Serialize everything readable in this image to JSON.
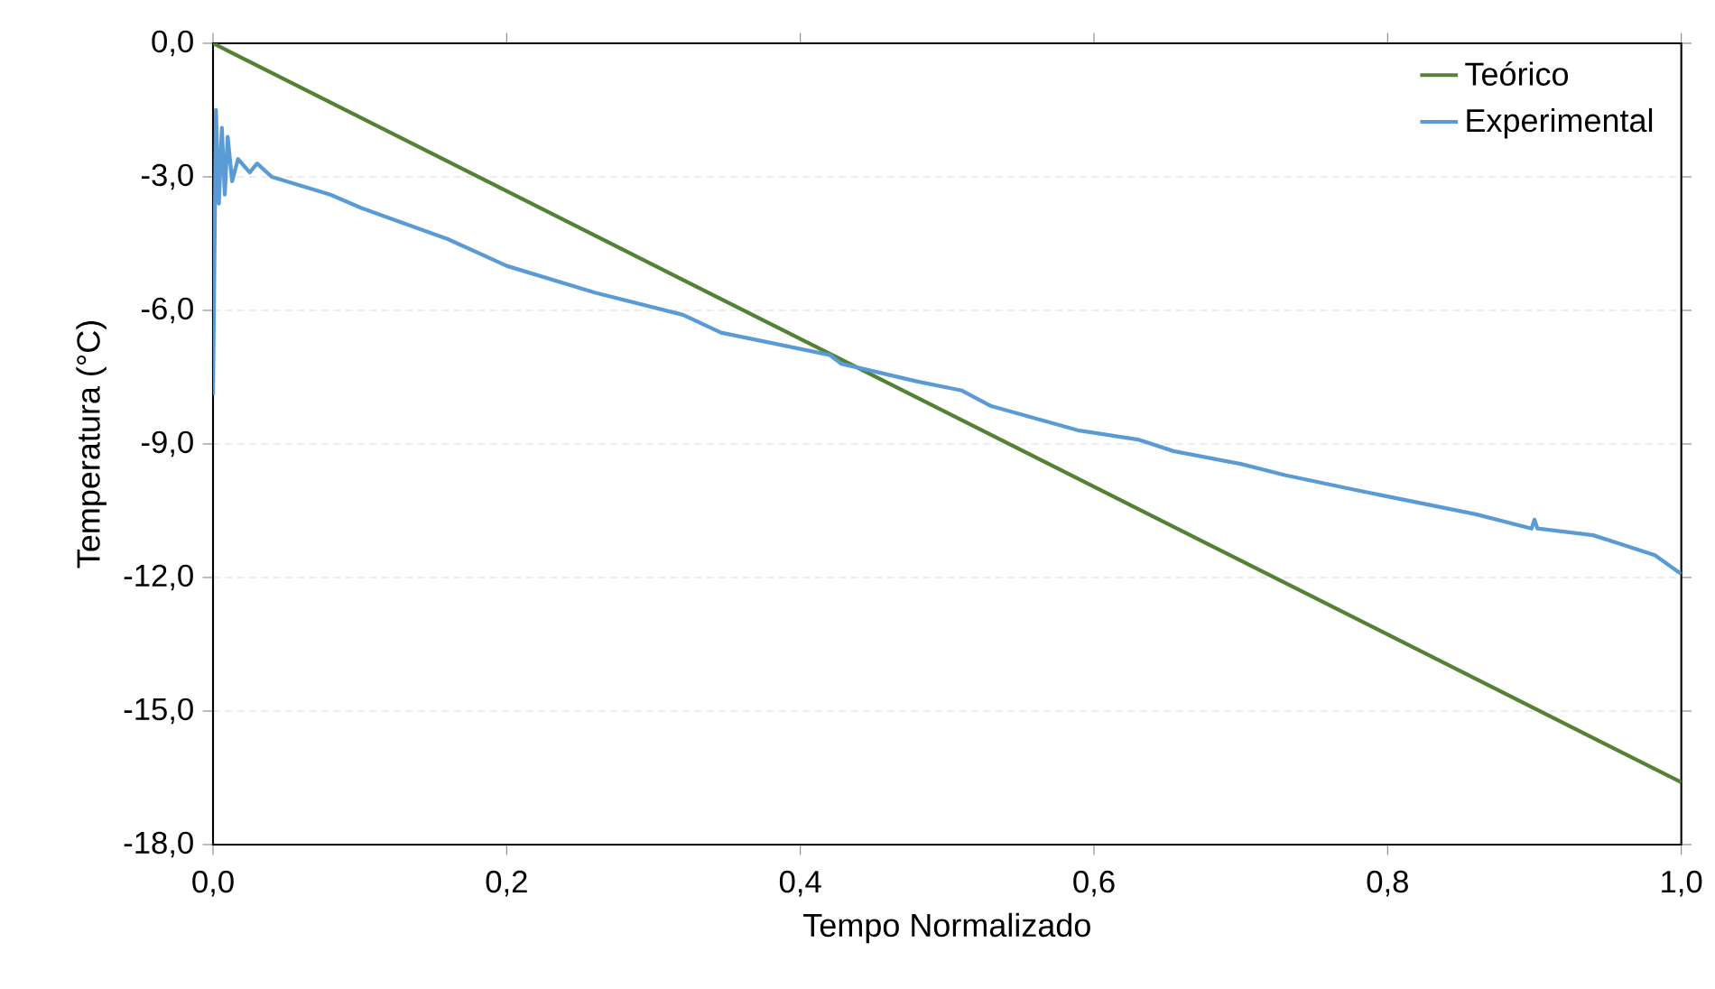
{
  "chart_data": {
    "type": "line",
    "xlabel": "Tempo Normalizado",
    "ylabel": "Temperatura (°C)",
    "xlim": [
      0,
      1
    ],
    "ylim": [
      -18,
      0
    ],
    "xticks": [
      {
        "value": 0,
        "label": "0,0"
      },
      {
        "value": 0.2,
        "label": "0,2"
      },
      {
        "value": 0.4,
        "label": "0,4"
      },
      {
        "value": 0.6,
        "label": "0,6"
      },
      {
        "value": 0.8,
        "label": "0,8"
      },
      {
        "value": 1,
        "label": "1,0"
      }
    ],
    "yticks": [
      {
        "value": -18,
        "label": "-18,0"
      },
      {
        "value": -15,
        "label": "-15,0"
      },
      {
        "value": -12,
        "label": "-12,0"
      },
      {
        "value": -9,
        "label": "-9,0"
      },
      {
        "value": -6,
        "label": "-6,0"
      },
      {
        "value": -3,
        "label": "-3,0"
      },
      {
        "value": 0,
        "label": "0,0"
      }
    ],
    "grid": "y",
    "legend": "top right",
    "series": [
      {
        "name": "Teórico",
        "color": "#548235",
        "x": [
          0,
          1
        ],
        "values": [
          0,
          -16.6
        ]
      },
      {
        "name": "Experimental",
        "color": "#5b9bd5",
        "x": [
          0,
          0.002,
          0.004,
          0.006,
          0.008,
          0.01,
          0.013,
          0.017,
          0.025,
          0.03,
          0.04,
          0.08,
          0.101,
          0.16,
          0.2,
          0.26,
          0.32,
          0.346,
          0.42,
          0.428,
          0.48,
          0.51,
          0.53,
          0.59,
          0.63,
          0.654,
          0.7,
          0.73,
          0.779,
          0.86,
          0.898,
          0.9,
          0.902,
          0.94,
          0.982,
          1.0
        ],
        "values": [
          -7.9,
          -1.5,
          -3.6,
          -1.9,
          -3.4,
          -2.1,
          -3.1,
          -2.6,
          -2.9,
          -2.7,
          -3.0,
          -3.4,
          -3.7,
          -4.4,
          -5.0,
          -5.6,
          -6.1,
          -6.5,
          -7.0,
          -7.2,
          -7.6,
          -7.8,
          -8.15,
          -8.7,
          -8.9,
          -9.16,
          -9.45,
          -9.7,
          -10.04,
          -10.58,
          -10.9,
          -10.7,
          -10.9,
          -11.05,
          -11.5,
          -11.92
        ]
      }
    ]
  }
}
